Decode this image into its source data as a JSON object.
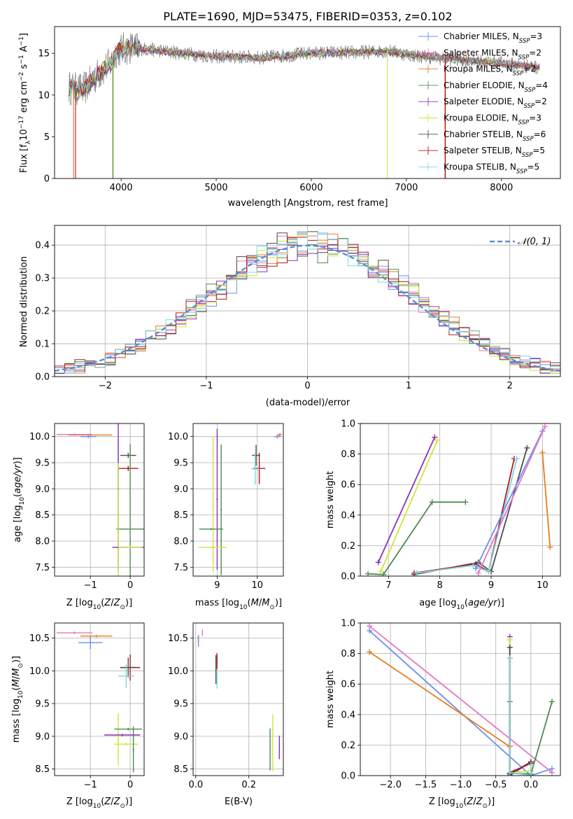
{
  "title": "PLATE=1690, MJD=53475, FIBERID=0353, z=0.102",
  "colors": {
    "Chabrier MILES": "#6b8ff0",
    "Salpeter MILES": "#e377c2",
    "Kroupa MILES": "#e87d1e",
    "Chabrier ELODIE": "#4e8a52",
    "Salpeter ELODIE": "#8e2fbf",
    "Kroupa ELODIE": "#cde63a",
    "Chabrier STELIB": "#4d4d4d",
    "Salpeter STELIB": "#b0181d",
    "Kroupa STELIB": "#7fd8dc",
    "gauss": "#5b8bd9",
    "grid": "#b0b0b0"
  },
  "chart_data": [
    {
      "id": "spectrum",
      "type": "line",
      "title": "PLATE=1690, MJD=53475, FIBERID=0353, z=0.102",
      "xlabel": "wavelength [Angstrom, rest frame]",
      "ylabel": "Flux [f_λ 10^-17 erg cm^-2 s^-1 A^-1]",
      "xlim": [
        3300,
        8620
      ],
      "ylim": [
        0,
        18.2
      ],
      "xticks": [
        "4000",
        "5000",
        "6000",
        "7000",
        "8000"
      ],
      "yticks": [
        "0",
        "5",
        "10",
        "15"
      ],
      "grid": false,
      "legend_position": "right",
      "legend": [
        {
          "label": "Chabrier MILES, N_SSP=3",
          "base": "Chabrier MILES, N",
          "sub": "SSP",
          "tail": "=3"
        },
        {
          "label": "Salpeter MILES, N_SSP=2",
          "base": "Salpeter MILES, N",
          "sub": "SSP",
          "tail": "=2"
        },
        {
          "label": "Kroupa MILES, N_SSP=2",
          "base": "Kroupa MILES, N",
          "sub": "SSP",
          "tail": "=2"
        },
        {
          "label": "Chabrier ELODIE, N_SSP=4",
          "base": "Chabrier ELODIE, N",
          "sub": "SSP",
          "tail": "=4"
        },
        {
          "label": "Salpeter ELODIE, N_SSP=2",
          "base": "Salpeter ELODIE, N",
          "sub": "SSP",
          "tail": "=2"
        },
        {
          "label": "Kroupa ELODIE, N_SSP=3",
          "base": "Kroupa ELODIE, N",
          "sub": "SSP",
          "tail": "=3"
        },
        {
          "label": "Chabrier STELIB, N_SSP=6",
          "base": "Chabrier STELIB, N",
          "sub": "SSP",
          "tail": "=6"
        },
        {
          "label": "Salpeter STELIB, N_SSP=5",
          "base": "Salpeter STELIB, N",
          "sub": "SSP",
          "tail": "=5"
        },
        {
          "label": "Kroupa STELIB, N_SSP=5",
          "base": "Kroupa STELIB, N",
          "sub": "SSP",
          "tail": "=5"
        }
      ],
      "continuum": [
        [
          3450,
          10.9
        ],
        [
          3600,
          10.6
        ],
        [
          3750,
          12.4
        ],
        [
          3900,
          13.9
        ],
        [
          3950,
          15.3
        ],
        [
          4100,
          15.7
        ],
        [
          4500,
          15.2
        ],
        [
          5000,
          14.6
        ],
        [
          5500,
          14.5
        ],
        [
          6000,
          15.0
        ],
        [
          6500,
          15.1
        ],
        [
          6800,
          15.3
        ],
        [
          7100,
          14.7
        ],
        [
          7500,
          14.3
        ],
        [
          8000,
          13.8
        ],
        [
          8400,
          13.3
        ]
      ],
      "wavelength_range": [
        3450,
        8400
      ],
      "drops": [
        {
          "model": "Kroupa MILES",
          "x": 3500
        },
        {
          "model": "Salpeter STELIB",
          "x": 3520
        },
        {
          "model": "Kroupa ELODIE",
          "x": 3910
        },
        {
          "model": "Chabrier ELODIE",
          "x": 3915
        },
        {
          "model": "Kroupa ELODIE",
          "x": 6800
        },
        {
          "model": "Kroupa MILES",
          "x": 7405
        },
        {
          "model": "Salpeter STELIB",
          "x": 7410
        }
      ]
    },
    {
      "id": "residuals",
      "type": "line",
      "xlabel": "(data-model)/error",
      "ylabel": "Normed distribution",
      "xlim": [
        -2.5,
        2.5
      ],
      "ylim": [
        0,
        0.46
      ],
      "xticks": [
        "−2",
        "−1",
        "0",
        "1",
        "2"
      ],
      "yticks": [
        "0.0",
        "0.1",
        "0.2",
        "0.3",
        "0.4"
      ],
      "grid": true,
      "legend_position": "top-right",
      "legend": [
        {
          "label": "𝒩(0, 1)"
        }
      ],
      "gaussian": {
        "mean": 0,
        "sigma": 1
      },
      "histogram_bins": 50
    },
    {
      "id": "age-vs-Z",
      "type": "scatter",
      "xlabel": "Z [log10(Z/Z⊙)]",
      "ylabel": "age [log10(age/yr)]",
      "xlim": [
        -1.9,
        0.35
      ],
      "ylim": [
        7.33,
        10.25
      ],
      "xticks": [
        "−1",
        "0"
      ],
      "yticks": [
        "7.5",
        "8.0",
        "8.5",
        "9.0",
        "9.5",
        "10.0"
      ],
      "grid": true,
      "points": [
        {
          "model": "Kroupa MILES",
          "x": -1.0,
          "y": 10.03,
          "xerr": 0.55,
          "yerr": 0.03
        },
        {
          "model": "Chabrier MILES",
          "x": -1.05,
          "y": 10.0,
          "xerr": 0.2,
          "yerr": 0.03
        },
        {
          "model": "Salpeter MILES",
          "x": -1.4,
          "y": 10.04,
          "xerr": 0.45,
          "yerr": 0.02
        },
        {
          "model": "Salpeter STELIB",
          "x": -0.05,
          "y": 9.39,
          "xerr": 0.25,
          "yerr": 0.05
        },
        {
          "model": "Chabrier STELIB",
          "x": -0.05,
          "y": 9.64,
          "xerr": 0.2,
          "yerr": 0.05
        },
        {
          "model": "Kroupa STELIB",
          "x": -0.3,
          "y": 9.5,
          "xerr": 0.02,
          "yerr": 0.45
        },
        {
          "model": "Chabrier ELODIE",
          "x": 0.0,
          "y": 8.23,
          "xerr": 0.35,
          "yerr": 1.63
        },
        {
          "model": "Salpeter ELODIE",
          "x": -0.3,
          "y": 9.0,
          "xerr": 0.02,
          "yerr": 1.58
        },
        {
          "model": "Kroupa ELODIE",
          "x": -0.3,
          "y": 8.4,
          "xerr": 0.02,
          "yerr": 1.1
        },
        {
          "model": "Salpeter ELODIE",
          "x": 0.0,
          "y": 7.88,
          "xerr": 0.45,
          "yerr": 0.02
        },
        {
          "model": "Kroupa ELODIE",
          "x": 0.0,
          "y": 7.88,
          "xerr": 0.3,
          "yerr": 0.02
        }
      ]
    },
    {
      "id": "age-vs-mass",
      "type": "scatter",
      "xlabel": "mass [log10(M/M⊙)]",
      "ylabel": "",
      "xlim": [
        8.4,
        10.65
      ],
      "ylim": [
        7.33,
        10.25
      ],
      "xticks": [
        "9",
        "10"
      ],
      "yticks": [
        "7.5",
        "8.0",
        "8.5",
        "9.0",
        "9.5",
        "10.0"
      ],
      "grid": true,
      "points": [
        {
          "model": "Chabrier MILES",
          "x": 10.5,
          "y": 10.0,
          "xerr": 0.08,
          "yerr": 0.04
        },
        {
          "model": "Kroupa MILES",
          "x": 10.55,
          "y": 10.03,
          "xerr": 0.05,
          "yerr": 0.03
        },
        {
          "model": "Salpeter MILES",
          "x": 10.58,
          "y": 10.04,
          "xerr": 0.03,
          "yerr": 0.02
        },
        {
          "model": "Salpeter STELIB",
          "x": 10.05,
          "y": 9.39,
          "xerr": 0.15,
          "yerr": 0.3
        },
        {
          "model": "Chabrier STELIB",
          "x": 9.97,
          "y": 9.64,
          "xerr": 0.1,
          "yerr": 0.2
        },
        {
          "model": "Kroupa STELIB",
          "x": 9.95,
          "y": 9.38,
          "xerr": 0.1,
          "yerr": 0.3
        },
        {
          "model": "Salpeter ELODIE",
          "x": 9.0,
          "y": 8.8,
          "xerr": 0.02,
          "yerr": 1.35
        },
        {
          "model": "Chabrier ELODIE",
          "x": 9.1,
          "y": 8.6,
          "xerr": 0.02,
          "yerr": 1.25
        },
        {
          "model": "Kroupa ELODIE",
          "x": 8.9,
          "y": 8.7,
          "xerr": 0.02,
          "yerr": 1.3
        },
        {
          "model": "Chabrier ELODIE",
          "x": 8.85,
          "y": 8.23,
          "xerr": 0.3,
          "yerr": 0.02
        },
        {
          "model": "Kroupa ELODIE",
          "x": 8.88,
          "y": 7.88,
          "xerr": 0.35,
          "yerr": 0.02
        }
      ]
    },
    {
      "id": "weight-vs-age",
      "type": "line",
      "xlabel": "age [log10(age/yr)]",
      "ylabel": "mass weight",
      "xlim": [
        6.45,
        10.35
      ],
      "ylim": [
        0,
        1.0
      ],
      "xticks": [
        "7",
        "8",
        "9",
        "10"
      ],
      "yticks": [
        "0.0",
        "0.2",
        "0.4",
        "0.6",
        "0.8",
        "1.0"
      ],
      "grid": true,
      "series": [
        {
          "model": "Salpeter ELODIE",
          "x": [
            6.8,
            7.9
          ],
          "y": [
            0.09,
            0.91
          ]
        },
        {
          "model": "Kroupa ELODIE",
          "x": [
            6.85,
            7.95
          ],
          "y": [
            0.03,
            0.89
          ]
        },
        {
          "model": "Chabrier ELODIE",
          "x": [
            6.6,
            6.9,
            7.85,
            8.5
          ],
          "y": [
            0.015,
            0.01,
            0.485,
            0.485
          ]
        },
        {
          "model": "Chabrier STELIB",
          "x": [
            7.5,
            8.75,
            9.0,
            9.7
          ],
          "y": [
            0.01,
            0.09,
            0.03,
            0.84
          ]
        },
        {
          "model": "Salpeter STELIB",
          "x": [
            7.5,
            8.7,
            8.95,
            9.45
          ],
          "y": [
            0.02,
            0.08,
            0.03,
            0.77
          ]
        },
        {
          "model": "Kroupa STELIB",
          "x": [
            7.55,
            8.65,
            8.95,
            9.5
          ],
          "y": [
            0.02,
            0.07,
            0.03,
            0.77
          ]
        },
        {
          "model": "Chabrier MILES",
          "x": [
            8.7,
            10.0
          ],
          "y": [
            0.05,
            0.95
          ]
        },
        {
          "model": "Salpeter MILES",
          "x": [
            8.75,
            10.05
          ],
          "y": [
            0.02,
            0.98
          ]
        },
        {
          "model": "Kroupa MILES",
          "x": [
            10.0,
            10.15
          ],
          "y": [
            0.81,
            0.19
          ]
        }
      ]
    },
    {
      "id": "mass-vs-Z",
      "type": "scatter",
      "xlabel": "Z [log10(Z/Z⊙)]",
      "ylabel": "mass [log10(M/M⊙)]",
      "xlim": [
        -1.9,
        0.35
      ],
      "ylim": [
        8.4,
        10.73
      ],
      "xticks": [
        "−1",
        "0"
      ],
      "yticks": [
        "8.5",
        "9.0",
        "9.5",
        "10.0",
        "10.5"
      ],
      "grid": true,
      "points": [
        {
          "model": "Salpeter MILES",
          "x": -1.4,
          "y": 10.58,
          "xerr": 0.45,
          "yerr": 0.02
        },
        {
          "model": "Kroupa MILES",
          "x": -0.85,
          "y": 10.53,
          "xerr": 0.4,
          "yerr": 0.02
        },
        {
          "model": "Chabrier MILES",
          "x": -1.0,
          "y": 10.43,
          "xerr": 0.3,
          "yerr": 0.1
        },
        {
          "model": "Salpeter STELIB",
          "x": 0.0,
          "y": 10.05,
          "xerr": 0.25,
          "yerr": 0.2
        },
        {
          "model": "Chabrier STELIB",
          "x": -0.05,
          "y": 10.05,
          "xerr": 0.2,
          "yerr": 0.15
        },
        {
          "model": "Kroupa STELIB",
          "x": -0.1,
          "y": 9.92,
          "xerr": 0.2,
          "yerr": 0.18
        },
        {
          "model": "Kroupa ELODIE",
          "x": -0.3,
          "y": 8.95,
          "xerr": 0.02,
          "yerr": 0.4
        },
        {
          "model": "Kroupa ELODIE",
          "x": -0.1,
          "y": 8.88,
          "xerr": 0.3,
          "yerr": 0.02
        },
        {
          "model": "Chabrier ELODIE",
          "x": 0.08,
          "y": 8.8,
          "xerr": 0.02,
          "yerr": 0.35
        },
        {
          "model": "Chabrier ELODIE",
          "x": -0.05,
          "y": 9.11,
          "xerr": 0.35,
          "yerr": 0.02
        },
        {
          "model": "Salpeter ELODIE",
          "x": -0.2,
          "y": 9.02,
          "xerr": 0.45,
          "yerr": 0.02
        }
      ]
    },
    {
      "id": "mass-vs-EBV",
      "type": "scatter",
      "xlabel": "E(B-V)",
      "ylabel": "",
      "xlim": [
        -0.01,
        0.33
      ],
      "ylim": [
        8.4,
        10.73
      ],
      "xticks": [
        "0.0",
        "0.2"
      ],
      "yticks": [
        "8.5",
        "9.0",
        "9.5",
        "10.0",
        "10.5"
      ],
      "grid": true,
      "points": [
        {
          "model": "Salpeter MILES",
          "x": 0.025,
          "y": 10.58,
          "xerr": 0.002,
          "yerr": 0.05
        },
        {
          "model": "Kroupa MILES",
          "x": 0.01,
          "y": 10.5,
          "xerr": 0.002,
          "yerr": 0.05
        },
        {
          "model": "Chabrier MILES",
          "x": 0.01,
          "y": 10.45,
          "xerr": 0.002,
          "yerr": 0.08
        },
        {
          "model": "Salpeter STELIB",
          "x": 0.08,
          "y": 10.15,
          "xerr": 0.002,
          "yerr": 0.12
        },
        {
          "model": "Chabrier STELIB",
          "x": 0.076,
          "y": 10.02,
          "xerr": 0.002,
          "yerr": 0.22
        },
        {
          "model": "Kroupa STELIB",
          "x": 0.08,
          "y": 9.88,
          "xerr": 0.002,
          "yerr": 0.15
        },
        {
          "model": "Chabrier ELODIE",
          "x": 0.28,
          "y": 8.8,
          "xerr": 0.002,
          "yerr": 0.32
        },
        {
          "model": "Kroupa ELODIE",
          "x": 0.29,
          "y": 8.9,
          "xerr": 0.002,
          "yerr": 0.43
        },
        {
          "model": "Salpeter ELODIE",
          "x": 0.315,
          "y": 8.83,
          "xerr": 0.002,
          "yerr": 0.18
        }
      ]
    },
    {
      "id": "weight-vs-Z",
      "type": "line",
      "xlabel": "Z [log10(Z/Z⊙)]",
      "ylabel": "mass weight",
      "xlim": [
        -2.43,
        0.42
      ],
      "ylim": [
        0,
        1.0
      ],
      "xticks": [
        "−2.0",
        "−1.5",
        "−1.0",
        "−0.5",
        "0.0"
      ],
      "yticks": [
        "0.0",
        "0.2",
        "0.4",
        "0.6",
        "0.8",
        "1.0"
      ],
      "grid": true,
      "series": [
        {
          "model": "Chabrier MILES",
          "x": [
            -2.3,
            0.0,
            0.3
          ],
          "y": [
            0.95,
            0.0,
            0.045
          ]
        },
        {
          "model": "Salpeter MILES",
          "x": [
            -2.3,
            0.3
          ],
          "y": [
            0.98,
            0.02
          ]
        },
        {
          "model": "Kroupa MILES",
          "x": [
            -2.3,
            -0.3
          ],
          "y": [
            0.81,
            0.19
          ]
        },
        {
          "model": "Salpeter ELODIE",
          "x": [
            -0.3,
            -0.3,
            0.0
          ],
          "y": [
            0.91,
            0.0,
            0.09
          ]
        },
        {
          "model": "Kroupa ELODIE",
          "x": [
            -0.3,
            -0.3,
            0.0
          ],
          "y": [
            0.89,
            0.02,
            0.03
          ]
        },
        {
          "model": "Chabrier ELODIE",
          "x": [
            -0.3,
            -0.3,
            0.0,
            0.3
          ],
          "y": [
            0.485,
            0.015,
            0.01,
            0.485
          ]
        },
        {
          "model": "Chabrier STELIB",
          "x": [
            -0.3,
            -0.3,
            0.0
          ],
          "y": [
            0.84,
            0.01,
            0.09
          ]
        },
        {
          "model": "Salpeter STELIB",
          "x": [
            -0.3,
            -0.3,
            0.0
          ],
          "y": [
            0.77,
            0.02,
            0.08
          ]
        },
        {
          "model": "Kroupa STELIB",
          "x": [
            -0.3,
            -0.3,
            0.0,
            0.0
          ],
          "y": [
            0.77,
            0.02,
            0.0,
            0.07
          ]
        }
      ]
    }
  ]
}
